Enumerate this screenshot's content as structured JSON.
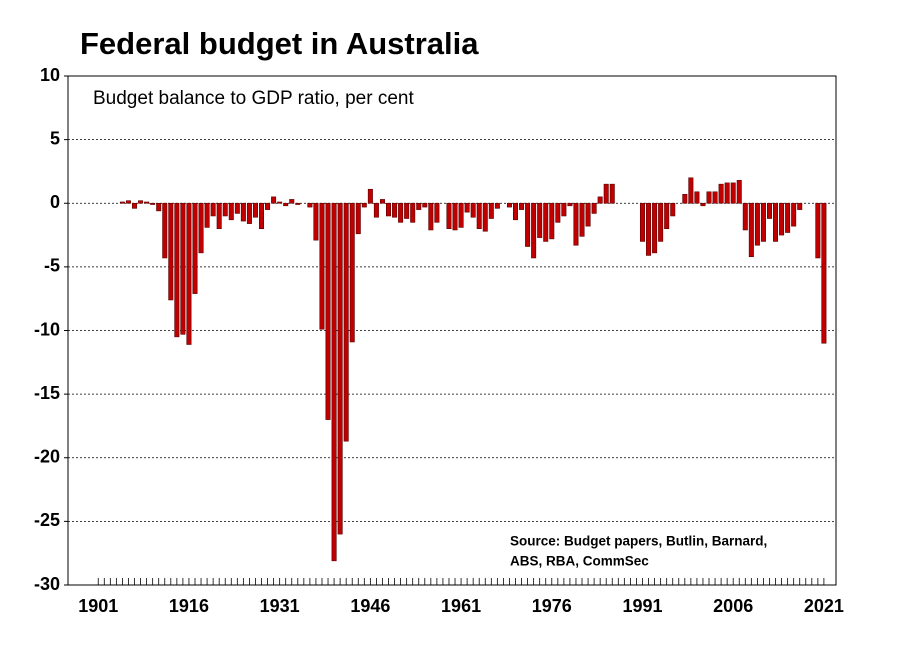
{
  "chart_data": {
    "type": "bar",
    "title": "Federal budget in Australia",
    "subtitle": "Budget balance to GDP ratio, per cent",
    "source": [
      "Source: Budget papers, Butlin, Barnard,",
      "ABS, RBA, CommSec"
    ],
    "x": [
      1901,
      1902,
      1903,
      1904,
      1905,
      1906,
      1907,
      1908,
      1909,
      1910,
      1911,
      1912,
      1913,
      1914,
      1915,
      1916,
      1917,
      1918,
      1919,
      1920,
      1921,
      1922,
      1923,
      1924,
      1925,
      1926,
      1927,
      1928,
      1929,
      1930,
      1931,
      1932,
      1933,
      1934,
      1935,
      1936,
      1937,
      1938,
      1939,
      1940,
      1941,
      1942,
      1943,
      1944,
      1945,
      1946,
      1947,
      1948,
      1949,
      1950,
      1951,
      1952,
      1953,
      1954,
      1955,
      1956,
      1957,
      1958,
      1959,
      1960,
      1961,
      1962,
      1963,
      1964,
      1965,
      1966,
      1967,
      1968,
      1969,
      1970,
      1971,
      1972,
      1973,
      1974,
      1975,
      1976,
      1977,
      1978,
      1979,
      1980,
      1981,
      1982,
      1983,
      1984,
      1985,
      1986,
      1987,
      1988,
      1989,
      1990,
      1991,
      1992,
      1993,
      1994,
      1995,
      1996,
      1997,
      1998,
      1999,
      2000,
      2001,
      2002,
      2003,
      2004,
      2005,
      2006,
      2007,
      2008,
      2009,
      2010,
      2011,
      2012,
      2013,
      2014,
      2015,
      2016,
      2017,
      2018,
      2019,
      2020,
      2021
    ],
    "values": [
      0,
      0,
      0,
      0,
      0.1,
      0.2,
      -0.4,
      0.2,
      0.1,
      -0.1,
      -0.6,
      -4.3,
      -7.6,
      -10.5,
      -10.3,
      -11.1,
      -7.1,
      -3.9,
      -1.9,
      -1.0,
      -2.0,
      -1.0,
      -1.3,
      -0.8,
      -1.4,
      -1.6,
      -1.1,
      -2.0,
      -0.5,
      0.5,
      0.1,
      -0.2,
      0.3,
      -0.1,
      0.0,
      -0.3,
      -2.9,
      -9.9,
      -17.0,
      -28.1,
      -26.0,
      -18.7,
      -10.9,
      -2.4,
      -0.3,
      1.1,
      -1.1,
      0.3,
      -1.0,
      -1.1,
      -1.5,
      -1.2,
      -1.5,
      -0.5,
      -0.3,
      -2.1,
      -1.5,
      0.0,
      -2.0,
      -2.1,
      -1.9,
      -0.7,
      -1.1,
      -2.0,
      -2.2,
      -1.2,
      -0.4,
      0.0,
      -0.3,
      -1.3,
      -0.5,
      -3.4,
      -4.3,
      -2.7,
      -3.0,
      -2.8,
      -1.5,
      -1.0,
      -0.2,
      -3.3,
      -2.6,
      -1.8,
      -0.8,
      0.5,
      1.5,
      1.5,
      0.0,
      0.0,
      0.0,
      0.0,
      -3.0,
      -4.1,
      -3.9,
      -3.0,
      -2.0,
      -1.0,
      0.0,
      0.7,
      2.0,
      0.9,
      -0.2,
      0.9,
      0.9,
      1.5,
      1.6,
      1.6,
      1.8,
      -2.1,
      -4.2,
      -3.3,
      -3.0,
      -1.2,
      -3.0,
      -2.5,
      -2.3,
      -1.8,
      -0.5,
      0.0,
      0.0,
      -4.3,
      -11.0
    ],
    "color": "#c00000",
    "xlim": [
      1896,
      2023
    ],
    "xticks": [
      1901,
      1916,
      1931,
      1946,
      1961,
      1976,
      1991,
      2006,
      2021
    ],
    "ylim": [
      -30,
      10
    ],
    "yticks": [
      -30,
      -25,
      -20,
      -15,
      -10,
      -5,
      0,
      5,
      10
    ],
    "grid": true
  }
}
